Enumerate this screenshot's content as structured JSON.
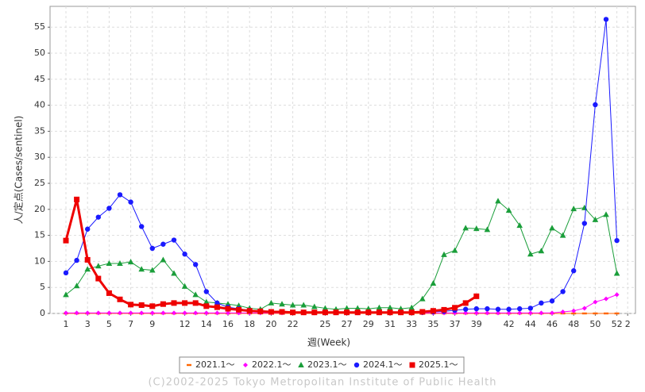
{
  "chart_data": {
    "type": "line",
    "ylabel": "人/定点(Cases/sentinel)",
    "xlabel": "週(Week)",
    "footer": "(C)2002-2025 Tokyo Metropolitan Institute of Public Health",
    "categories": [
      "1",
      null,
      "3",
      null,
      "5",
      null,
      "7",
      null,
      "9",
      null,
      null,
      "12",
      null,
      "14",
      null,
      "16",
      null,
      "18",
      null,
      "20",
      null,
      "22",
      null,
      null,
      "25",
      null,
      "27",
      null,
      "29",
      null,
      "31",
      null,
      "33",
      null,
      "35",
      null,
      "37",
      null,
      "39",
      null,
      null,
      "42",
      null,
      "44",
      null,
      "46",
      null,
      "48",
      null,
      "50",
      null,
      "52",
      "2"
    ],
    "ylim": [
      0,
      59
    ],
    "yticks": [
      0,
      5,
      10,
      15,
      20,
      25,
      30,
      35,
      40,
      45,
      50,
      55
    ],
    "grid": true,
    "series": [
      {
        "name": "2021.1～",
        "color": "#ff6600",
        "marker": "dash",
        "width": 1,
        "values": [
          0,
          0,
          0,
          0,
          0,
          0,
          0,
          0,
          0,
          0,
          0,
          0,
          0,
          0,
          0,
          0,
          0,
          0,
          0,
          0,
          0,
          0,
          0,
          0,
          0,
          0,
          0,
          0,
          0,
          0,
          0,
          0,
          0,
          0,
          0,
          0,
          0,
          0,
          0,
          0,
          0,
          0,
          0,
          0,
          0,
          0,
          0,
          0,
          0,
          0,
          0,
          0,
          null
        ]
      },
      {
        "name": "2022.1～",
        "color": "#ff00ff",
        "marker": "diamond",
        "width": 1,
        "values": [
          0.1,
          0.1,
          0.1,
          0.1,
          0.1,
          0.1,
          0.1,
          0.1,
          0.1,
          0.1,
          0.1,
          0.1,
          0.1,
          0.1,
          0.1,
          0.1,
          0.1,
          0.1,
          0.1,
          0.1,
          0.1,
          0.1,
          0.1,
          0.1,
          0.1,
          0.1,
          0.1,
          0.1,
          0.1,
          0.1,
          0.1,
          0.1,
          0.1,
          0.1,
          0.1,
          0.1,
          0.1,
          0.1,
          0.1,
          0.1,
          0.1,
          0.1,
          0.1,
          0.1,
          0.1,
          0.1,
          0.3,
          0.5,
          1.0,
          2.2,
          2.8,
          3.6,
          null
        ]
      },
      {
        "name": "2023.1～",
        "color": "#1a9e3a",
        "marker": "triangle",
        "width": 1,
        "values": [
          3.6,
          5.3,
          8.5,
          9.1,
          9.6,
          9.6,
          9.9,
          8.5,
          8.3,
          10.3,
          7.7,
          5.2,
          3.6,
          2.2,
          2.0,
          1.8,
          1.5,
          1.0,
          0.8,
          2.0,
          1.8,
          1.6,
          1.6,
          1.3,
          1.0,
          0.8,
          1.0,
          1.0,
          0.9,
          1.1,
          1.1,
          0.9,
          1.1,
          2.8,
          5.8,
          11.3,
          12.1,
          16.4,
          16.3,
          16.1,
          21.6,
          19.8,
          16.9,
          11.4,
          12.0,
          16.4,
          15.0,
          20.1,
          20.3,
          18.0,
          19.0,
          7.7,
          null
        ]
      },
      {
        "name": "2024.1～",
        "color": "#1a1aff",
        "marker": "circle",
        "width": 1,
        "values": [
          7.8,
          10.2,
          16.2,
          18.5,
          20.2,
          22.8,
          21.4,
          16.7,
          12.5,
          13.3,
          14.1,
          11.4,
          9.4,
          4.2,
          2.0,
          1.2,
          0.9,
          0.6,
          0.4,
          0.3,
          0.3,
          0.2,
          0.2,
          0.2,
          0.2,
          0.2,
          0.2,
          0.2,
          0.2,
          0.2,
          0.2,
          0.2,
          0.2,
          0.2,
          0.3,
          0.4,
          0.6,
          0.8,
          0.9,
          0.9,
          0.8,
          0.8,
          0.9,
          1.0,
          2.0,
          2.4,
          4.2,
          8.2,
          17.3,
          40.1,
          56.5,
          14.0,
          null
        ]
      },
      {
        "name": "2025.1～",
        "color": "#ee0000",
        "marker": "square",
        "width": 3,
        "values": [
          14,
          21.9,
          10.3,
          6.7,
          3.9,
          2.7,
          1.7,
          1.6,
          1.4,
          1.8,
          2.0,
          2.0,
          2.0,
          1.4,
          1.2,
          0.9,
          0.7,
          0.5,
          0.4,
          0.3,
          0.3,
          0.2,
          0.2,
          0.2,
          0.2,
          0.2,
          0.2,
          0.2,
          0.2,
          0.2,
          0.2,
          0.2,
          0.2,
          0.3,
          0.5,
          0.7,
          1.1,
          2.0,
          3.3,
          null,
          null,
          null,
          null,
          null,
          null,
          null,
          null,
          null,
          null,
          null,
          null,
          null,
          null
        ]
      }
    ]
  }
}
